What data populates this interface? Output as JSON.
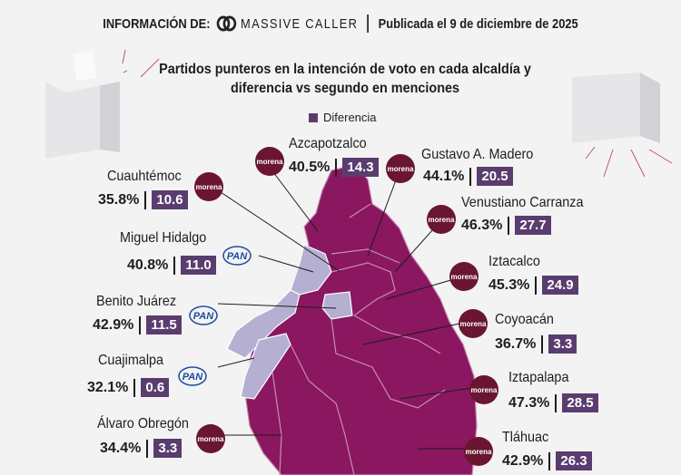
{
  "header": {
    "info_label": "INFORMACIÓN DE:",
    "brand": "MASSIVE CALLER",
    "published": "Publicada el 9 de diciembre de 2025"
  },
  "colors": {
    "morena": "#6a1630",
    "map_morena": "#8a1760",
    "map_pan": "#b5b0d2",
    "diff_box": "#5a3d6e"
  },
  "chart_data": {
    "type": "table",
    "title": "Partidos punteros en la intención de voto en cada alcaldía y diferencia vs segundo en menciones",
    "legend": [
      "Diferencia"
    ],
    "rows": [
      {
        "name": "Azcapotzalco",
        "party": "morena",
        "pct": "40.5%",
        "diff": "14.3",
        "icon": "morena-logo"
      },
      {
        "name": "Gustavo A. Madero",
        "party": "morena",
        "pct": "44.1%",
        "diff": "20.5",
        "icon": "morena-logo"
      },
      {
        "name": "Cuauhtémoc",
        "party": "morena",
        "pct": "35.8%",
        "diff": "10.6",
        "icon": "morena-logo"
      },
      {
        "name": "Venustiano Carranza",
        "party": "morena",
        "pct": "46.3%",
        "diff": "27.7",
        "icon": "morena-logo"
      },
      {
        "name": "Miguel Hidalgo",
        "party": "PAN",
        "pct": "40.8%",
        "diff": "11.0",
        "icon": "pan-logo"
      },
      {
        "name": "Iztacalco",
        "party": "morena",
        "pct": "45.3%",
        "diff": "24.9",
        "icon": "morena-logo"
      },
      {
        "name": "Benito Juárez",
        "party": "PAN",
        "pct": "42.9%",
        "diff": "11.5",
        "icon": "pan-logo"
      },
      {
        "name": "Coyoacán",
        "party": "morena",
        "pct": "36.7%",
        "diff": "3.3",
        "icon": "morena-logo"
      },
      {
        "name": "Cuajimalpa",
        "party": "PAN",
        "pct": "32.1%",
        "diff": "0.6",
        "icon": "pan-logo"
      },
      {
        "name": "Iztapalapa",
        "party": "morena",
        "pct": "47.3%",
        "diff": "28.5",
        "icon": "morena-logo"
      },
      {
        "name": "Álvaro Obregón",
        "party": "morena",
        "pct": "34.4%",
        "diff": "3.3",
        "icon": "morena-logo"
      },
      {
        "name": "Tláhuac",
        "party": "morena",
        "pct": "42.9%",
        "diff": "26.3",
        "icon": "morena-logo"
      }
    ]
  },
  "logo_text": {
    "morena": "morena",
    "pan": "PAN"
  }
}
